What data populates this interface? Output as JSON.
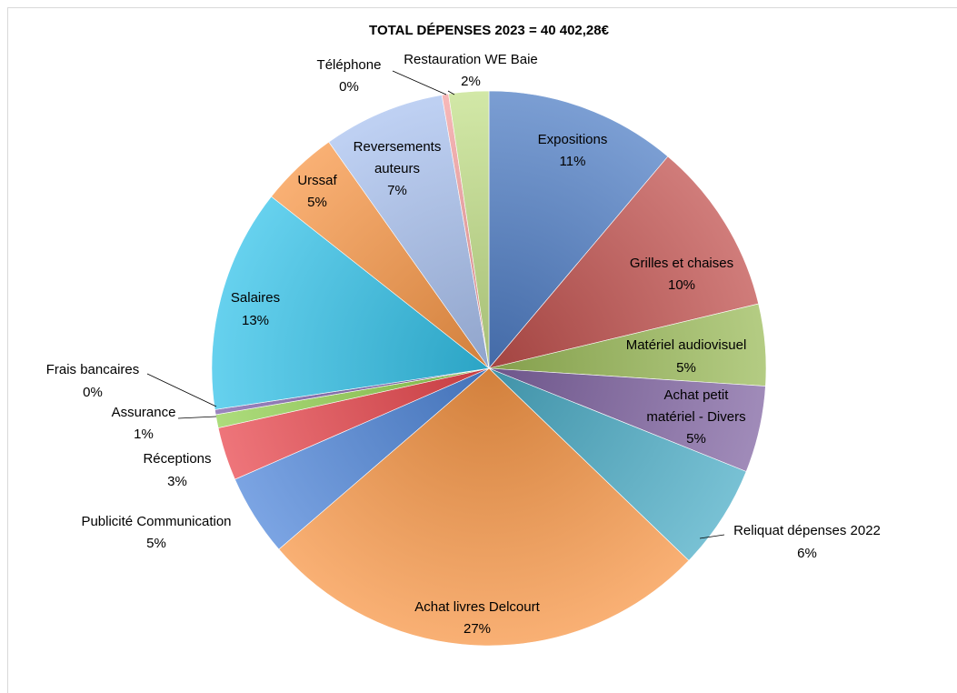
{
  "chart_data": {
    "type": "pie",
    "title": "TOTAL DÉPENSES 2023 = 40 402,28€",
    "slices": [
      {
        "label": "Expositions",
        "percent_label": "11%",
        "value": 11.5,
        "color": "#4f7dc4"
      },
      {
        "label": "Grilles et chaises",
        "percent_label": "10%",
        "value": 10.4,
        "color": "#c0504d"
      },
      {
        "label": "Matériel audiovisuel",
        "percent_label": "5%",
        "value": 4.9,
        "color": "#9bbb59"
      },
      {
        "label": "Achat petit matériel - Divers",
        "percent_label": "5%",
        "value": 5.2,
        "color": "#8064a2"
      },
      {
        "label": "Reliquat dépenses 2022",
        "percent_label": "6%",
        "value": 6.3,
        "color": "#4bacc6"
      },
      {
        "label": "Achat livres Delcourt",
        "percent_label": "27%",
        "value": 27.3,
        "color": "#f79646"
      },
      {
        "label": "Publicité Communication",
        "percent_label": "5%",
        "value": 4.9,
        "color": "#4f86d9"
      },
      {
        "label": "Réceptions",
        "percent_label": "3%",
        "value": 3.2,
        "color": "#e8474d"
      },
      {
        "label": "Assurance",
        "percent_label": "1%",
        "value": 0.8,
        "color": "#92d050"
      },
      {
        "label": "Frais bancaires",
        "percent_label": "0%",
        "value": 0.3,
        "color": "#7a5ea8"
      },
      {
        "label": "Salaires",
        "percent_label": "13%",
        "value": 13.4,
        "color": "#33c1e8"
      },
      {
        "label": "Urssaf",
        "percent_label": "5%",
        "value": 4.7,
        "color": "#f79646"
      },
      {
        "label": "Reversements auteurs",
        "percent_label": "7%",
        "value": 7.3,
        "color": "#a9c1ef"
      },
      {
        "label": "Téléphone",
        "percent_label": "0%",
        "value": 0.4,
        "color": "#f4a0a0"
      },
      {
        "label": "Restauration WE Baie",
        "percent_label": "2%",
        "value": 2.4,
        "color": "#c3e08a"
      }
    ],
    "legend": "none"
  }
}
